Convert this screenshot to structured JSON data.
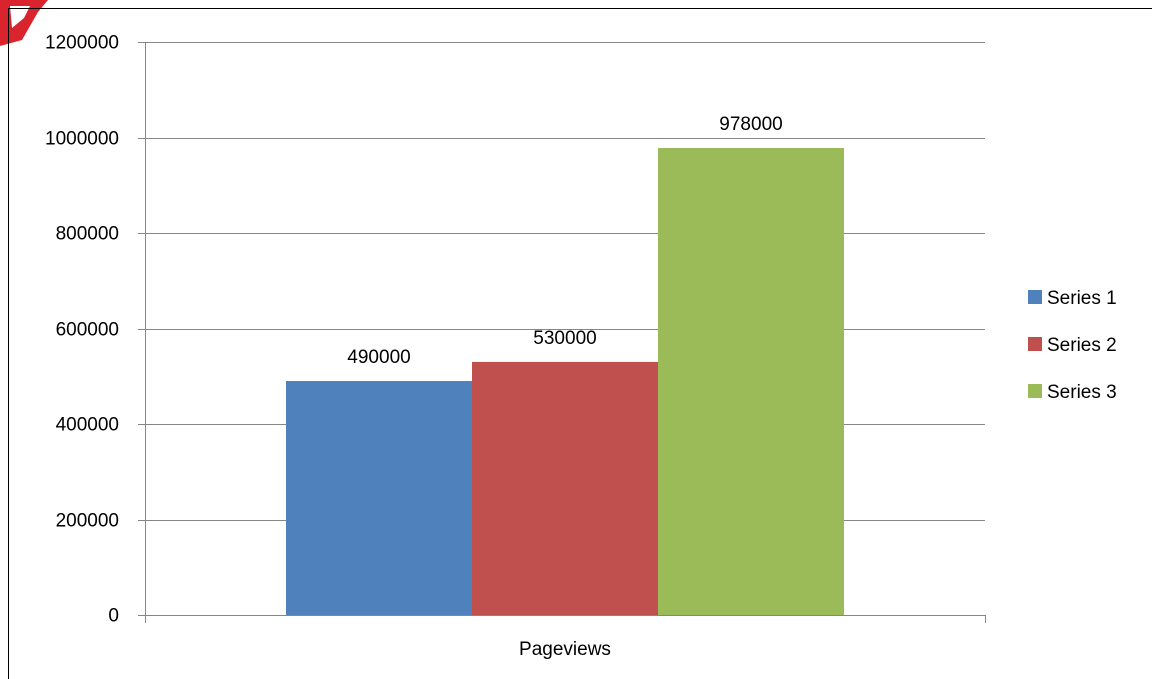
{
  "chart_data": {
    "type": "bar",
    "categories": [
      "Pageviews"
    ],
    "series": [
      {
        "name": "Series 1",
        "values": [
          490000
        ],
        "color": "#4F81BD"
      },
      {
        "name": "Series 2",
        "values": [
          530000
        ],
        "color": "#C0504D"
      },
      {
        "name": "Series 3",
        "values": [
          978000
        ],
        "color": "#9BBB59"
      }
    ],
    "ylim": [
      0,
      1200000
    ],
    "yticks": [
      0,
      200000,
      400000,
      600000,
      800000,
      1000000,
      1200000
    ],
    "title": "",
    "xlabel": "",
    "ylabel": "",
    "grid": true,
    "legend_position": "right",
    "data_labels": true
  }
}
